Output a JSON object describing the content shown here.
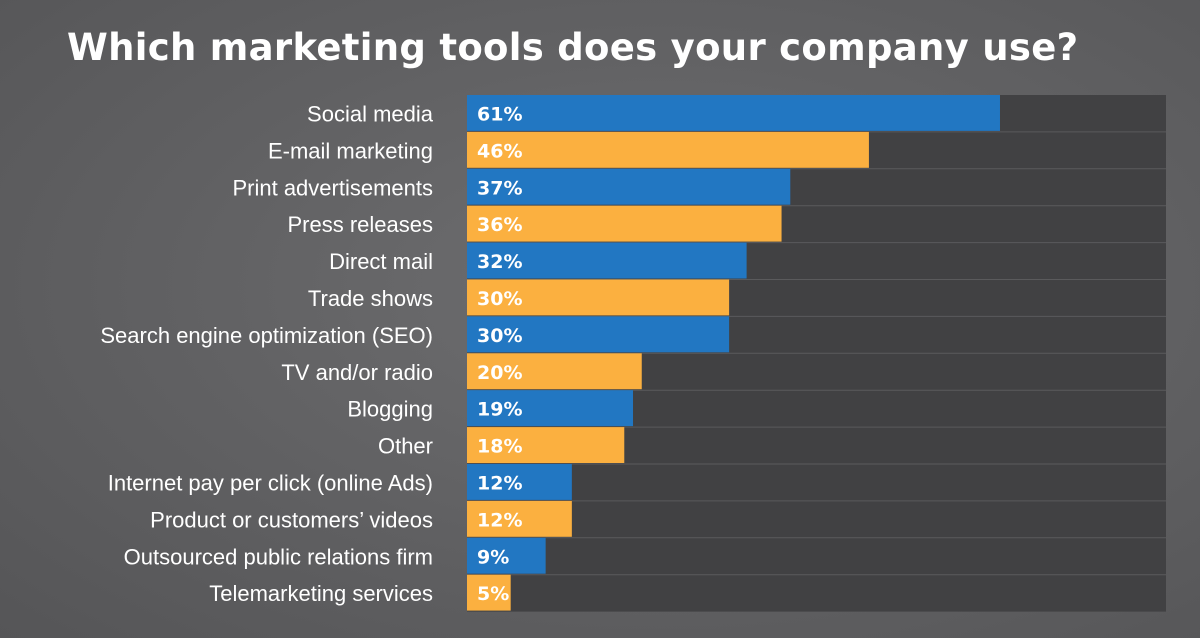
{
  "colors": {
    "series_a": "#2277c2",
    "series_b": "#fbb040",
    "plot_background": "#414143",
    "row_divider": "#5a5a5c",
    "text": "#ffffff"
  },
  "chart_data": {
    "type": "bar",
    "orientation": "horizontal",
    "title": "Which marketing tools does your company use?",
    "xlabel": "",
    "ylabel": "",
    "xlim": [
      0,
      80
    ],
    "grid": false,
    "legend": "none",
    "value_suffix": "%",
    "categories": [
      "Social media",
      "E-mail marketing",
      "Print advertisements",
      "Press releases",
      "Direct mail",
      "Trade shows",
      "Search engine optimization (SEO)",
      "TV and/or radio",
      "Blogging",
      "Other",
      "Internet pay per click (online Ads)",
      "Product or customers’ videos",
      "Outsourced public relations firm",
      "Telemarketing services"
    ],
    "values": [
      61,
      46,
      37,
      36,
      32,
      30,
      30,
      20,
      19,
      18,
      12,
      12,
      9,
      5
    ],
    "bar_colors": "alternating blue / orange by row"
  }
}
